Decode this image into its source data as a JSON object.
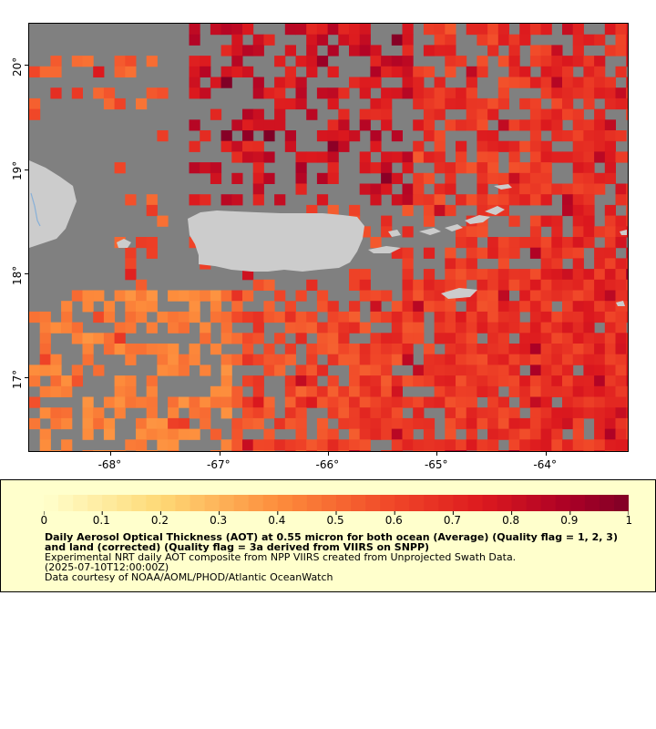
{
  "map": {
    "lon_range": [
      -68.75,
      -63.25
    ],
    "lat_range": [
      16.3,
      20.4
    ],
    "lon_ticks": [
      {
        "value": -68,
        "label": "-68°"
      },
      {
        "value": -67,
        "label": "-67°"
      },
      {
        "value": -66,
        "label": "-66°"
      },
      {
        "value": -65,
        "label": "-65°"
      },
      {
        "value": -64,
        "label": "-64°"
      }
    ],
    "lat_ticks": [
      {
        "value": 20,
        "label": "20°"
      },
      {
        "value": 19,
        "label": "19°"
      },
      {
        "value": 18,
        "label": "18°"
      },
      {
        "value": 17,
        "label": "17°"
      }
    ],
    "colors": {
      "no_data": "#808080",
      "land": "#cccccc",
      "water": "#87b0d8",
      "frame": "#000000"
    }
  },
  "legend": {
    "background": "#ffffcc",
    "colorbar_min": 0,
    "colorbar_max": 1,
    "colorbar_ticks": [
      "0",
      "0.1",
      "0.2",
      "0.3",
      "0.4",
      "0.5",
      "0.6",
      "0.7",
      "0.8",
      "0.9",
      "1"
    ],
    "title": "Daily Aerosol Optical Thickness (AOT) at 0.55 micron for both ocean (Average) (Quality flag = 1, 2, 3) and land (corrected) (Quality flag = 3a derived from VIIRS on SNPP)",
    "description": "Experimental NRT daily AOT composite from NPP VIIRS created from Unprojected Swath Data.",
    "timestamp": "(2025-07-10T12:00:00Z)",
    "credit": "Data courtesy of NOAA/AOML/PHOD/Atlantic OceanWatch"
  }
}
